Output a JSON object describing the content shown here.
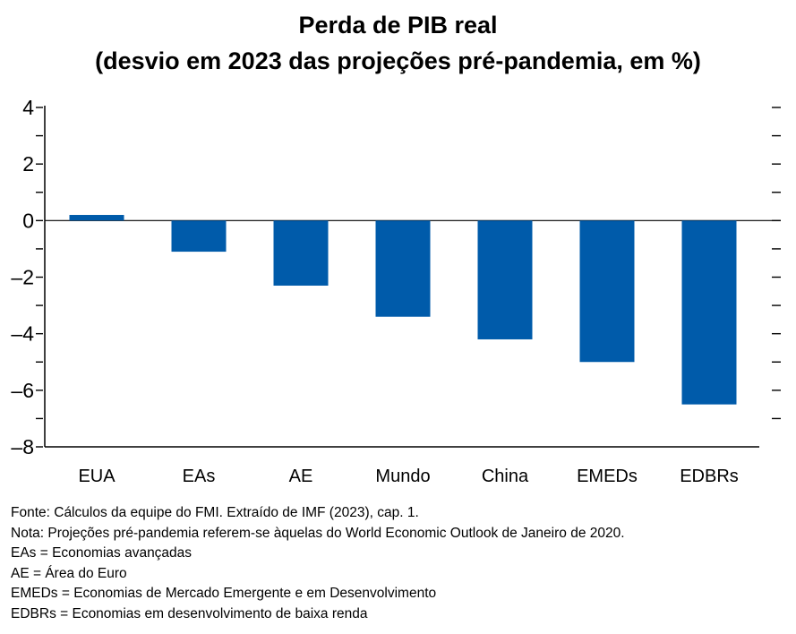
{
  "chart_data": {
    "type": "bar",
    "title": "Perda de PIB real",
    "subtitle": "(desvio em 2023 das projeções pré-pandemia, em %)",
    "categories": [
      "EUA",
      "EAs",
      "AE",
      "Mundo",
      "China",
      "EMEDs",
      "EDBRs"
    ],
    "values": [
      0.2,
      -1.1,
      -2.3,
      -3.4,
      -4.2,
      -5.0,
      -6.5
    ],
    "ylim": [
      -8,
      4
    ],
    "yticks": [
      "4",
      "2",
      "0",
      "–2",
      "–4",
      "–6",
      "–8"
    ],
    "xlabel": "",
    "ylabel": "",
    "bar_color": "#005BAA",
    "grid": false,
    "legend": "none"
  },
  "notes": [
    "Fonte: Cálculos da equipe do FMI. Extraído de IMF (2023), cap. 1.",
    "Nota: Projeções pré-pandemia referem-se àquelas do World Economic Outlook de Janeiro de 2020.",
    "EAs = Economias avançadas",
    "AE = Área do Euro",
    "EMEDs = Economias de Mercado Emergente e em Desenvolvimento",
    "EDBRs = Economias em desenvolvimento de baixa renda"
  ]
}
